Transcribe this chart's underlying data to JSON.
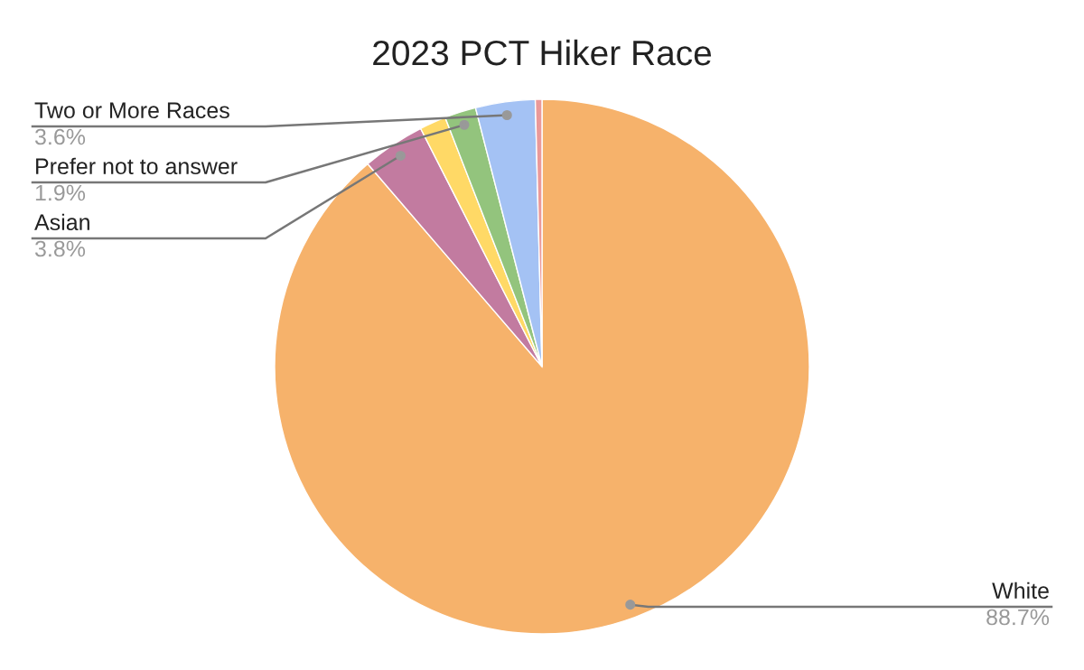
{
  "chart_data": {
    "type": "pie",
    "title": "2023 PCT Hiker Race",
    "categories": [
      "White",
      "Asian",
      null,
      "Prefer not to answer",
      "Two or More Races",
      null
    ],
    "values": [
      88.7,
      3.8,
      1.6,
      1.9,
      3.6,
      0.4
    ],
    "colors": [
      "#f6b26b",
      "#c27ba0",
      "#ffd966",
      "#93c47d",
      "#a4c2f4",
      "#ea9999"
    ],
    "value_labels": [
      "88.7%",
      "3.8%",
      null,
      "1.9%",
      "3.6%",
      null
    ]
  }
}
